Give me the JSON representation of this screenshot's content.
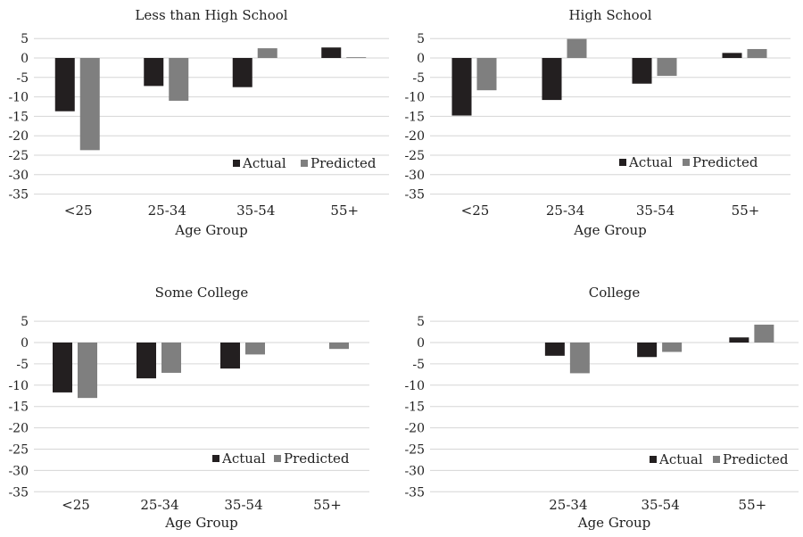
{
  "colors": {
    "actual": "#231f20",
    "predicted": "#7f7f7f",
    "grid": "#d6d6d6"
  },
  "chart_data": [
    {
      "type": "bar",
      "title": "Less than High School",
      "xlabel": "Age Group",
      "ylabel": "",
      "categories": [
        "<25",
        "25-34",
        "35-54",
        "55+"
      ],
      "ylim": [
        -35,
        5
      ],
      "yticks": [
        5,
        0,
        -5,
        -10,
        -15,
        -20,
        -25,
        -30,
        -35
      ],
      "grid": true,
      "legend": "lower-right",
      "series": [
        {
          "name": "Actual",
          "values": [
            -13.7,
            -7.2,
            -7.5,
            2.7
          ]
        },
        {
          "name": "Predicted",
          "values": [
            -23.7,
            -11.0,
            2.5,
            0.2
          ]
        }
      ]
    },
    {
      "type": "bar",
      "title": "High School",
      "xlabel": "Age Group",
      "ylabel": "",
      "categories": [
        "<25",
        "25-34",
        "35-54",
        "55+"
      ],
      "ylim": [
        -35,
        5
      ],
      "yticks": [
        5,
        0,
        -5,
        -10,
        -15,
        -20,
        -25,
        -30,
        -35
      ],
      "grid": true,
      "legend": "lower-right",
      "series": [
        {
          "name": "Actual",
          "values": [
            -14.8,
            -10.8,
            -6.6,
            1.3
          ]
        },
        {
          "name": "Predicted",
          "values": [
            -8.3,
            4.9,
            -4.6,
            2.3
          ]
        }
      ]
    },
    {
      "type": "bar",
      "title": "Some College",
      "xlabel": "Age Group",
      "ylabel": "",
      "categories": [
        "<25",
        "25-34",
        "35-54",
        "55+"
      ],
      "ylim": [
        -35,
        5
      ],
      "yticks": [
        5,
        0,
        -5,
        -10,
        -15,
        -20,
        -25,
        -30,
        -35
      ],
      "grid": true,
      "legend": "lower-right",
      "series": [
        {
          "name": "Actual",
          "values": [
            -11.7,
            -8.4,
            -6.1,
            0
          ]
        },
        {
          "name": "Predicted",
          "values": [
            -13.0,
            -7.1,
            -2.8,
            -1.5
          ]
        }
      ]
    },
    {
      "type": "bar",
      "title": "College",
      "xlabel": "Age Group",
      "ylabel": "",
      "categories": [
        "",
        "25-34",
        "35-54",
        "55+"
      ],
      "ylim": [
        -35,
        5
      ],
      "yticks": [
        5,
        0,
        -5,
        -10,
        -15,
        -20,
        -25,
        -30,
        -35
      ],
      "grid": true,
      "legend": "lower-right",
      "series": [
        {
          "name": "Actual",
          "values": [
            0,
            -3.1,
            -3.4,
            1.2
          ]
        },
        {
          "name": "Predicted",
          "values": [
            0,
            -7.2,
            -2.2,
            4.2
          ]
        }
      ]
    }
  ]
}
